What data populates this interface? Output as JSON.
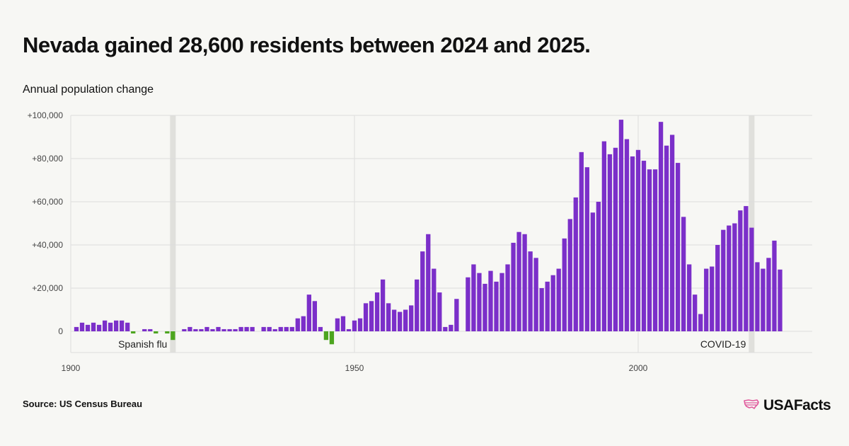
{
  "header": {
    "title": "Nevada gained 28,600 residents between 2024 and 2025.",
    "subtitle": "Annual population change"
  },
  "footer": {
    "source": "Source: US Census Bureau",
    "brand": "USAFacts",
    "brand_icon": "usa-map-icon"
  },
  "colors": {
    "positive": "#7b2fc9",
    "negative": "#4da51f",
    "background": "#f7f7f4",
    "grid": "#dddddd",
    "highlight": "#e0e0dc",
    "brand": "#e05a9c"
  },
  "chart_data": {
    "type": "bar",
    "ylim": [
      -10000,
      100000
    ],
    "xlim": [
      1900,
      2030
    ],
    "y_ticks": [
      0,
      20000,
      40000,
      60000,
      80000,
      100000
    ],
    "y_tick_labels": [
      "0",
      "+20,000",
      "+40,000",
      "+60,000",
      "+80,000",
      "+100,000"
    ],
    "x_ticks": [
      1900,
      1950,
      2000
    ],
    "x_tick_labels": [
      "1900",
      "1950",
      "2000"
    ],
    "grid": true,
    "annotations": [
      {
        "label": "Spanish flu",
        "year": 1918,
        "text_anchor": "end"
      },
      {
        "label": "COVID-19",
        "year": 2020,
        "text_anchor": "end"
      }
    ],
    "x": [
      1901,
      1902,
      1903,
      1904,
      1905,
      1906,
      1907,
      1908,
      1909,
      1910,
      1911,
      1912,
      1913,
      1914,
      1915,
      1916,
      1917,
      1918,
      1919,
      1920,
      1921,
      1922,
      1923,
      1924,
      1925,
      1926,
      1927,
      1928,
      1929,
      1930,
      1931,
      1932,
      1933,
      1934,
      1935,
      1936,
      1937,
      1938,
      1939,
      1940,
      1941,
      1942,
      1943,
      1944,
      1945,
      1946,
      1947,
      1948,
      1949,
      1950,
      1951,
      1952,
      1953,
      1954,
      1955,
      1956,
      1957,
      1958,
      1959,
      1960,
      1961,
      1962,
      1963,
      1964,
      1965,
      1966,
      1967,
      1968,
      1969,
      1970,
      1971,
      1972,
      1973,
      1974,
      1975,
      1976,
      1977,
      1978,
      1979,
      1980,
      1981,
      1982,
      1983,
      1984,
      1985,
      1986,
      1987,
      1988,
      1989,
      1990,
      1991,
      1992,
      1993,
      1994,
      1995,
      1996,
      1997,
      1998,
      1999,
      2000,
      2001,
      2002,
      2003,
      2004,
      2005,
      2006,
      2007,
      2008,
      2009,
      2010,
      2011,
      2012,
      2013,
      2014,
      2015,
      2016,
      2017,
      2018,
      2019,
      2020,
      2021,
      2022,
      2023,
      2024,
      2025
    ],
    "values": [
      2000,
      4000,
      3000,
      4000,
      3000,
      5000,
      4000,
      5000,
      5000,
      4000,
      -1000,
      0,
      1000,
      1000,
      -1000,
      0,
      -1000,
      -4000,
      0,
      1000,
      2000,
      1000,
      1000,
      2000,
      1000,
      2000,
      1000,
      1000,
      1000,
      2000,
      2000,
      2000,
      0,
      2000,
      2000,
      1000,
      2000,
      2000,
      2000,
      6000,
      7000,
      17000,
      14000,
      2000,
      -4000,
      -6000,
      6000,
      7000,
      1000,
      5000,
      6000,
      13000,
      14000,
      18000,
      24000,
      13000,
      10000,
      9000,
      10000,
      12000,
      24000,
      37000,
      45000,
      29000,
      18000,
      2000,
      3000,
      15000,
      0,
      25000,
      31000,
      27000,
      22000,
      28000,
      23000,
      27000,
      31000,
      41000,
      46000,
      45000,
      37000,
      34000,
      20000,
      23000,
      26000,
      29000,
      43000,
      52000,
      62000,
      83000,
      76000,
      55000,
      60000,
      88000,
      82000,
      85000,
      98000,
      89000,
      81000,
      84000,
      79000,
      75000,
      75000,
      97000,
      86000,
      91000,
      78000,
      53000,
      31000,
      17000,
      8000,
      29000,
      30000,
      40000,
      47000,
      49000,
      50000,
      56000,
      58000,
      48000,
      32000,
      29000,
      34000,
      42000,
      28600
    ]
  }
}
